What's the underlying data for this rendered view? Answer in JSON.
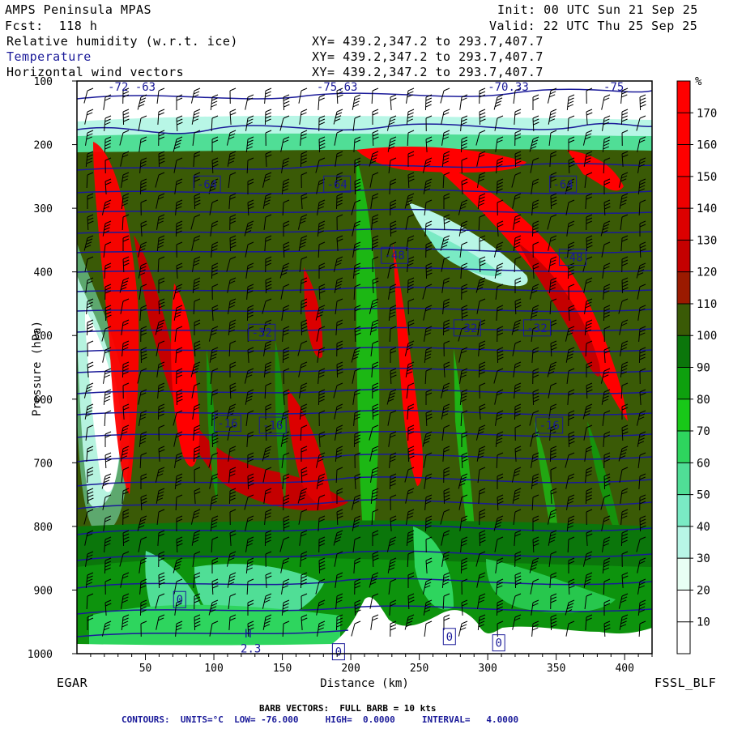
{
  "header": {
    "model": "AMPS Peninsula MPAS",
    "forecast": "Fcst:  118 h",
    "init": "Init: 00 UTC Sun 21 Sep 25",
    "valid": "Valid: 22 UTC Thu 25 Sep 25",
    "fields": [
      {
        "label": "Relative humidity (w.r.t. ice)",
        "xy": "XY= 439.2,347.2 to 293.7,407.7"
      },
      {
        "label": "Temperature",
        "xy": "XY= 439.2,347.2 to 293.7,407.7"
      },
      {
        "label": "Horizontal wind vectors",
        "xy": "XY= 439.2,347.2 to 293.7,407.7"
      }
    ]
  },
  "footer": {
    "left_station": "EGAR",
    "right_tag": "FSSL_BLF",
    "barb_note": "BARB VECTORS:  FULL BARB = 10 kts",
    "contour_note": "CONTOURS:  UNITS=°C  LOW= -76.000     HIGH=  0.0000     INTERVAL=   4.0000"
  },
  "colors": {
    "temperature_contour": "#1a1a99",
    "terrain": "#ffffff",
    "barb": "#000000"
  },
  "chart_data": {
    "type": "heatmap",
    "xlabel": "Distance (km)",
    "ylabel": "Pressure (hPa)",
    "xlim": [
      0,
      420
    ],
    "ylim": [
      1000,
      100
    ],
    "x_ticks": [
      50,
      100,
      150,
      200,
      250,
      300,
      350,
      400
    ],
    "y_ticks": [
      100,
      200,
      300,
      400,
      500,
      600,
      700,
      800,
      900,
      1000
    ],
    "colorbar": {
      "unit": "%",
      "boundaries": [
        10,
        20,
        30,
        40,
        50,
        60,
        70,
        80,
        90,
        100,
        110,
        120,
        130,
        140,
        150,
        160,
        170
      ],
      "colors": [
        "#ffffff",
        "#ffffff",
        "#e8fff4",
        "#b8f6e6",
        "#7aeac4",
        "#50de96",
        "#2ed55e",
        "#18c818",
        "#0ea00e",
        "#0b760b",
        "#3a5a06",
        "#9b1a00",
        "#c40000",
        "#dc0000",
        "#ee0000",
        "#ff0000",
        "#ff0000",
        "#ff0000"
      ]
    },
    "temperature_labels": [
      {
        "label": "-64",
        "x": 95,
        "p": 262
      },
      {
        "label": "-64",
        "x": 190,
        "p": 262
      },
      {
        "label": "-64",
        "x": 355,
        "p": 262
      },
      {
        "label": "-48",
        "x": 232,
        "p": 374
      },
      {
        "label": "-48",
        "x": 362,
        "p": 377
      },
      {
        "label": "-32",
        "x": 135,
        "p": 495
      },
      {
        "label": "-32",
        "x": 285,
        "p": 488
      },
      {
        "label": "-32",
        "x": 336,
        "p": 488
      },
      {
        "label": "-16",
        "x": 110,
        "p": 638
      },
      {
        "label": "-16",
        "x": 143,
        "p": 641
      },
      {
        "label": "-16",
        "x": 345,
        "p": 641
      },
      {
        "label": "0",
        "x": 75,
        "p": 915
      },
      {
        "label": "0",
        "x": 272,
        "p": 973
      },
      {
        "label": "0",
        "x": 308,
        "p": 983
      },
      {
        "label": "0",
        "x": 191,
        "p": 997
      }
    ],
    "top_partial_labels": [
      {
        "label": "-72 -63",
        "x": 40,
        "p": 110
      },
      {
        "label": "-75.63",
        "x": 190,
        "p": 110
      },
      {
        "label": "-70.33",
        "x": 315,
        "p": 110
      },
      {
        "label": "-75",
        "x": 392,
        "p": 110
      }
    ],
    "markers": [
      {
        "label": "H",
        "x": 125,
        "p": 968
      },
      {
        "label": "2.3",
        "x": 127,
        "p": 992
      }
    ]
  }
}
